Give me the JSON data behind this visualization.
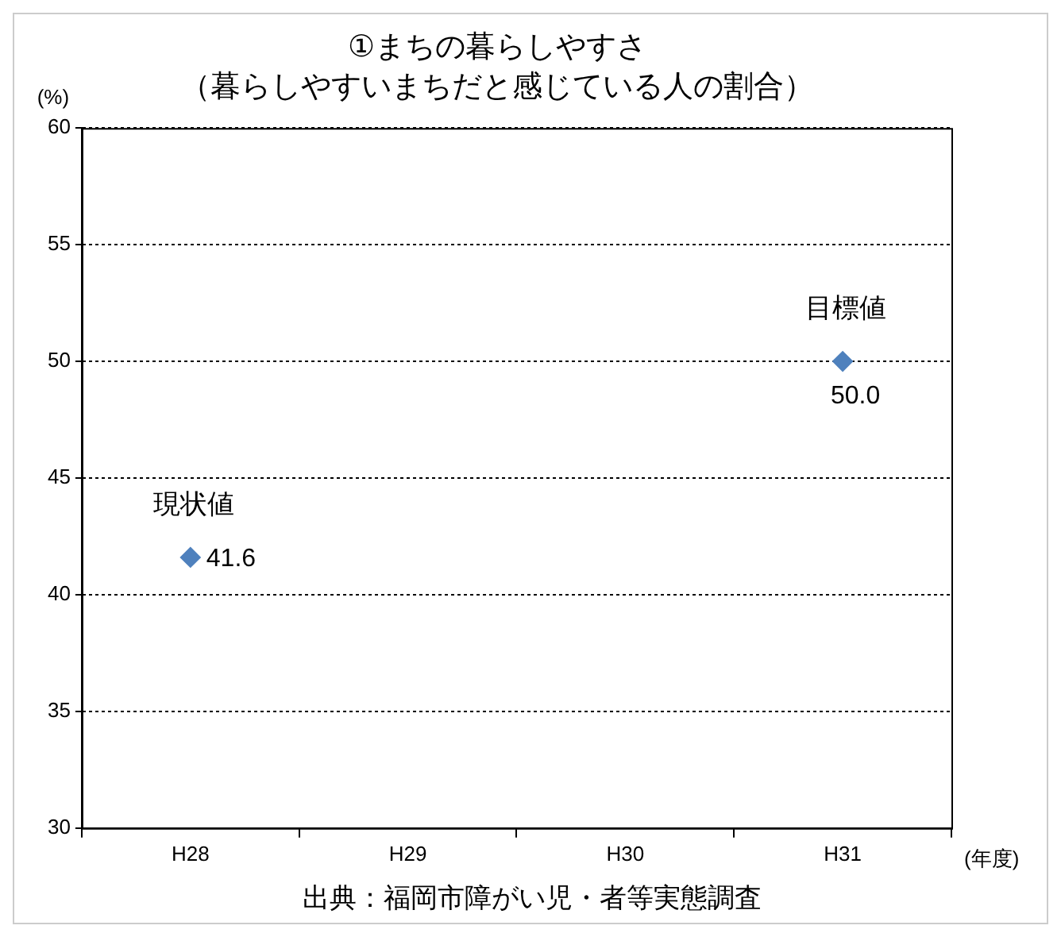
{
  "chart_data": {
    "type": "scatter",
    "title": "①まちの暮らしやすさ",
    "subtitle": "（暮らしやすいまちだと感じている人の割合）",
    "ylabel": "(%)",
    "xlabel": "(年度)",
    "categories": [
      "H28",
      "H29",
      "H30",
      "H31"
    ],
    "series": [
      {
        "color": "#4f81bd",
        "values": [
          41.6,
          null,
          null,
          50.0
        ],
        "value_labels": [
          "41.6",
          null,
          null,
          "50.0"
        ]
      }
    ],
    "ylim": [
      30,
      60
    ],
    "yticks": [
      30,
      35,
      40,
      45,
      50,
      55,
      60
    ],
    "grid": "y",
    "marker": "diamond",
    "legend": false,
    "annotations": [
      {
        "text": "現状値",
        "x": "H28",
        "y": 41.6
      },
      {
        "text": "目標値",
        "x": "H31",
        "y": 50.0
      },
      "出典：福岡市障がい児・者等実態調査"
    ]
  }
}
